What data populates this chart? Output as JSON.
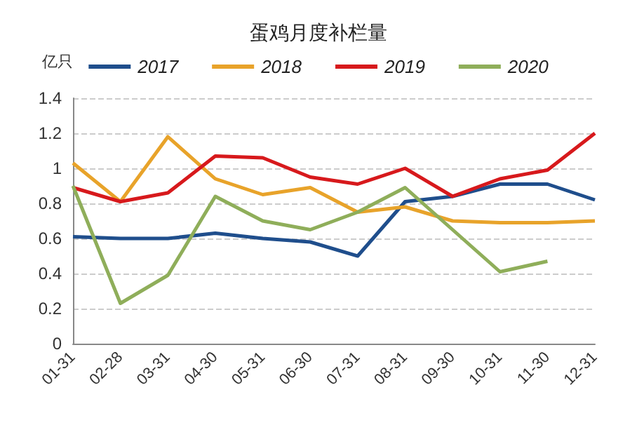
{
  "chart_data": {
    "type": "line",
    "title": "蛋鸡月度补栏量",
    "ylabel": "亿只",
    "categories": [
      "01-31",
      "02-28",
      "03-31",
      "04-30",
      "05-31",
      "06-30",
      "07-31",
      "08-31",
      "09-30",
      "10-31",
      "11-30",
      "12-31"
    ],
    "series": [
      {
        "name": "2017",
        "color": "#1f4e8c",
        "values": [
          0.61,
          0.6,
          0.6,
          0.63,
          0.6,
          0.58,
          0.5,
          0.81,
          0.84,
          0.91,
          0.91,
          0.82
        ]
      },
      {
        "name": "2018",
        "color": "#e8a32a",
        "values": [
          1.03,
          0.81,
          1.18,
          0.94,
          0.85,
          0.89,
          0.75,
          0.78,
          0.7,
          0.69,
          0.69,
          0.7
        ]
      },
      {
        "name": "2019",
        "color": "#d7191c",
        "values": [
          0.89,
          0.81,
          0.86,
          1.07,
          1.06,
          0.95,
          0.91,
          1.0,
          0.84,
          0.94,
          0.99,
          1.2
        ]
      },
      {
        "name": "2020",
        "color": "#8fae5a",
        "values": [
          0.9,
          0.23,
          0.39,
          0.84,
          0.7,
          0.65,
          0.75,
          0.89,
          0.65,
          0.41,
          0.47,
          null
        ]
      }
    ],
    "ylim": [
      0,
      1.4
    ],
    "yticks": [
      0,
      0.2,
      0.4,
      0.6,
      0.8,
      1,
      1.2,
      1.4
    ],
    "grid": "y",
    "legend": "top",
    "marker": "none",
    "line_style": "solid"
  }
}
